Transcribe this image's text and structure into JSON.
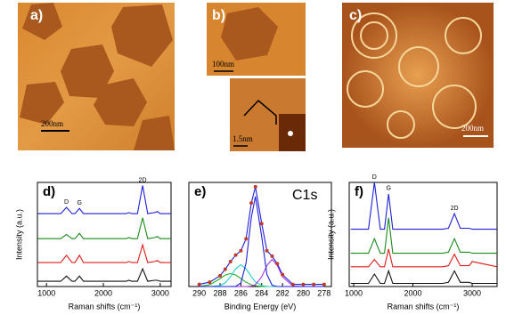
{
  "images": [
    {
      "label": "a)",
      "scale": "200nm"
    },
    {
      "label": "b)",
      "scale": "100nm",
      "scale2": "1.5nm"
    },
    {
      "label": "c)",
      "scale": "200nm"
    }
  ],
  "chart_data": [
    {
      "type": "line",
      "panel": "d)",
      "x_label": "Raman shifts (cm⁻¹)",
      "y_label": "Intensity (a.u.)",
      "x": [
        850,
        1250,
        1350,
        1450,
        1500,
        1580,
        1650,
        2400,
        2450,
        2500,
        2600,
        2690,
        2780,
        2900,
        2950,
        3000,
        3190
      ],
      "xlim": [
        840,
        3190
      ],
      "xticks": [
        1000,
        2000,
        3000
      ],
      "ylim": [
        0,
        10
      ],
      "series": [
        {
          "color": "#1f1fd8",
          "values": [
            7.0,
            7.0,
            7.6,
            7.0,
            7.0,
            7.5,
            7.0,
            7.0,
            7.1,
            7.0,
            7.0,
            9.7,
            7.0,
            7.1,
            7.2,
            7.0,
            7.0
          ]
        },
        {
          "color": "#1a8a1a",
          "values": [
            4.6,
            4.6,
            5.0,
            4.6,
            4.6,
            5.1,
            4.6,
            4.6,
            4.7,
            4.6,
            4.6,
            6.6,
            4.6,
            4.7,
            4.8,
            4.6,
            4.6
          ]
        },
        {
          "color": "#e01b1b",
          "values": [
            2.3,
            2.3,
            3.0,
            2.3,
            2.3,
            3.0,
            2.3,
            2.3,
            2.4,
            2.3,
            2.3,
            4.0,
            2.3,
            2.4,
            2.5,
            2.3,
            2.3
          ]
        },
        {
          "color": "#111111",
          "values": [
            0.5,
            0.5,
            1.0,
            0.5,
            0.5,
            1.0,
            0.5,
            0.5,
            0.6,
            0.5,
            0.5,
            1.7,
            0.5,
            0.6,
            0.6,
            0.5,
            0.5
          ]
        }
      ],
      "annotations": [
        {
          "text": "D",
          "x": 1350
        },
        {
          "text": "G",
          "x": 1580
        },
        {
          "text": "2D",
          "x": 2690
        }
      ]
    },
    {
      "type": "line",
      "panel": "e)",
      "title": "C1s",
      "x_label": "Binding Energy (eV)",
      "x": [
        290,
        289,
        288,
        287.5,
        287,
        286.5,
        286,
        285.5,
        285,
        284.6,
        284,
        283.5,
        283,
        282.5,
        282,
        281,
        280,
        279,
        278
      ],
      "xlim": [
        291,
        277.3
      ],
      "xticks": [
        290,
        288,
        286,
        284,
        282,
        280,
        278
      ],
      "ylim": [
        0,
        9.6
      ],
      "series": [
        {
          "color": "#22aa22",
          "style": "line",
          "values": [
            0.01,
            0.16,
            0.73,
            1.06,
            1.2,
            1.06,
            0.73,
            0.39,
            0.16,
            0.07,
            0.01,
            0,
            0,
            0,
            0,
            0,
            0,
            0,
            0
          ]
        },
        {
          "color": "#22cccc",
          "style": "line",
          "values": [
            0,
            0,
            0.09,
            0.34,
            0.92,
            1.64,
            2.0,
            1.64,
            0.92,
            0.43,
            0.09,
            0.01,
            0,
            0,
            0,
            0,
            0,
            0,
            0
          ]
        },
        {
          "color": "#aa33dd",
          "style": "line",
          "values": [
            0,
            0,
            0,
            0,
            0,
            0,
            0,
            0,
            0.04,
            0.18,
            0.9,
            1.94,
            2.5,
            1.94,
            0.9,
            0.04,
            0,
            0,
            0
          ]
        },
        {
          "color": "#1f1fd8",
          "style": "line",
          "values": [
            0,
            0,
            0,
            0,
            0,
            0.02,
            0.33,
            2.17,
            6.37,
            8.3,
            4.58,
            1.12,
            0.12,
            0,
            0,
            0,
            0,
            0,
            0
          ]
        },
        {
          "color": "#1f1fd8",
          "style": "line",
          "values": [
            0.2,
            0.4,
            1.0,
            1.6,
            2.3,
            2.9,
            3.3,
            4.4,
            7.7,
            9.2,
            5.8,
            3.3,
            2.8,
            2.1,
            1.1,
            0.2,
            0.2,
            0.2,
            0.2
          ]
        },
        {
          "color": "#c0392b",
          "style": "dots",
          "values": [
            0.2,
            0.4,
            1.0,
            1.6,
            2.3,
            2.9,
            3.3,
            4.4,
            7.7,
            9.2,
            5.8,
            3.3,
            2.8,
            2.1,
            1.1,
            0.2,
            0.2,
            0.2,
            0.2
          ]
        }
      ]
    },
    {
      "type": "line",
      "panel": "f)",
      "x_label": "Raman shifts (cm⁻¹)",
      "y_label": "Intensity (a.u.)",
      "x": [
        950,
        1250,
        1350,
        1450,
        1520,
        1590,
        1660,
        2000,
        2500,
        2600,
        2700,
        2800,
        2950,
        3000,
        3420
      ],
      "xlim": [
        925,
        3420
      ],
      "xticks": [
        1000,
        2000,
        3000
      ],
      "ylim": [
        0,
        10
      ],
      "series": [
        {
          "color": "#1f1fd8",
          "values": [
            5.5,
            5.5,
            10.0,
            5.5,
            5.5,
            8.9,
            5.5,
            5.5,
            5.5,
            5.6,
            7.0,
            5.6,
            5.6,
            5.5,
            5.5
          ]
        },
        {
          "color": "#1a8a1a",
          "values": [
            3.2,
            3.2,
            4.6,
            3.2,
            3.2,
            6.6,
            3.2,
            3.2,
            3.2,
            3.3,
            4.6,
            3.3,
            3.3,
            3.2,
            3.2
          ]
        },
        {
          "color": "#e01b1b",
          "values": [
            1.9,
            1.9,
            2.6,
            1.9,
            1.9,
            3.6,
            1.9,
            1.9,
            1.9,
            2.0,
            3.1,
            2.0,
            2.0,
            2.4,
            1.9
          ]
        },
        {
          "color": "#111111",
          "values": [
            0.3,
            0.3,
            1.2,
            0.3,
            0.3,
            1.5,
            0.3,
            0.3,
            0.3,
            0.4,
            1.5,
            0.4,
            0.4,
            0.3,
            0.3
          ]
        }
      ],
      "annotations": [
        {
          "text": "D",
          "x": 1350
        },
        {
          "text": "G",
          "x": 1590
        },
        {
          "text": "2D",
          "x": 2700
        }
      ]
    }
  ]
}
